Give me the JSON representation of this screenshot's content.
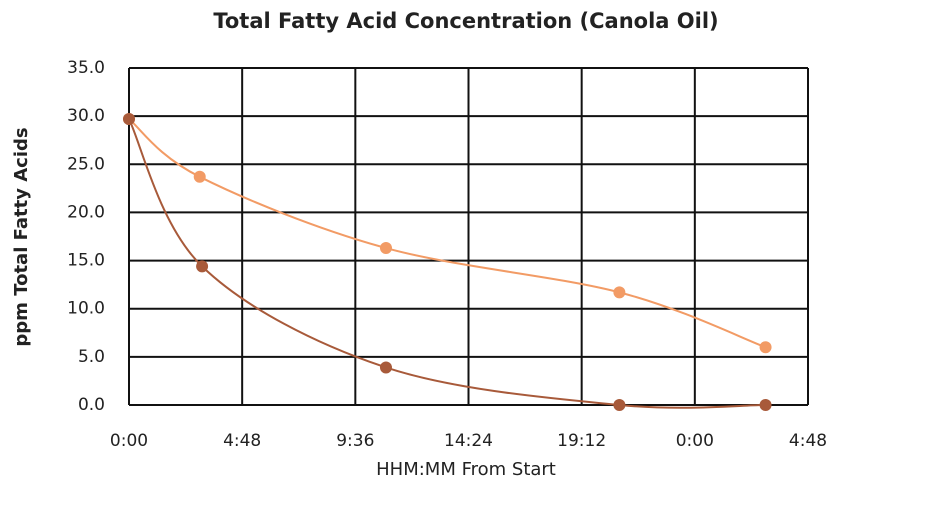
{
  "chart_data": {
    "type": "line",
    "title": "Total Fatty Acid Concentration (Canola Oil)",
    "xlabel": "HHM:MM From Start",
    "ylabel": "ppm Total Fatty Acids",
    "xlim": [
      0,
      28.8
    ],
    "xticks": [
      {
        "value": 0,
        "label": "0:00"
      },
      {
        "value": 4.8,
        "label": "4:48"
      },
      {
        "value": 9.6,
        "label": "9:36"
      },
      {
        "value": 14.4,
        "label": "14:24"
      },
      {
        "value": 19.2,
        "label": "19:12"
      },
      {
        "value": 24,
        "label": "0:00"
      },
      {
        "value": 28.8,
        "label": "4:48"
      }
    ],
    "ylim": [
      0,
      35
    ],
    "yticks": [
      {
        "value": 0,
        "label": "0.0"
      },
      {
        "value": 5,
        "label": "5.0"
      },
      {
        "value": 10,
        "label": "10.0"
      },
      {
        "value": 15,
        "label": "15.0"
      },
      {
        "value": 20,
        "label": "20.0"
      },
      {
        "value": 25,
        "label": "25.0"
      },
      {
        "value": 30,
        "label": "30.0"
      },
      {
        "value": 35,
        "label": "35.0"
      }
    ],
    "grid": true,
    "series": [
      {
        "color": "#f29b65",
        "x": [
          0,
          3.0,
          10.9,
          20.8,
          27.0
        ],
        "values": [
          29.7,
          23.7,
          16.3,
          11.7,
          6.0
        ]
      },
      {
        "color": "#a85a3a",
        "x": [
          0,
          3.1,
          10.9,
          20.8,
          27.0
        ],
        "values": [
          29.7,
          14.4,
          3.9,
          0,
          0
        ]
      }
    ]
  }
}
